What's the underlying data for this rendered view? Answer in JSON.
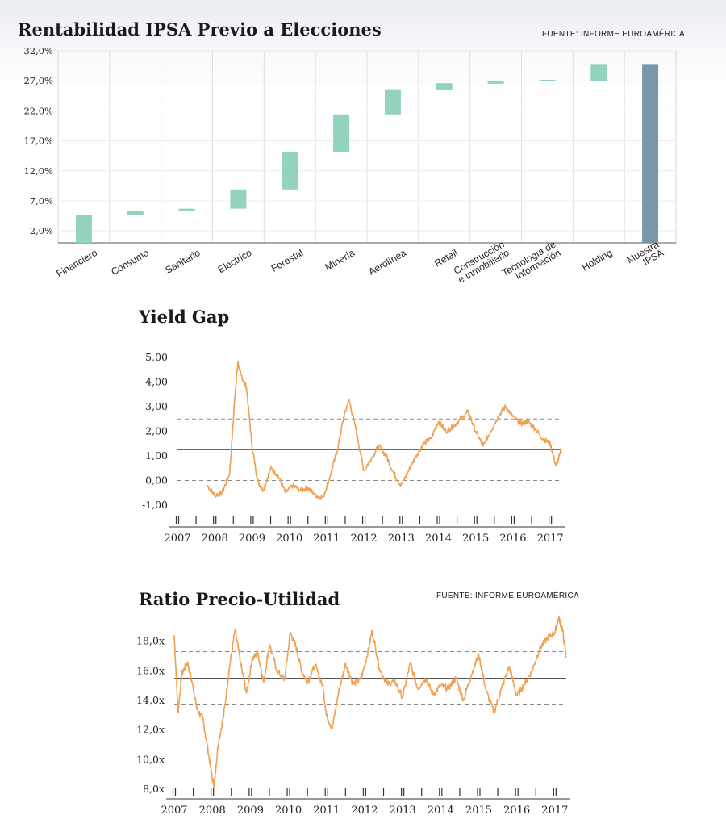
{
  "chart_data": [
    {
      "type": "bar",
      "subtype": "floating-waterfall",
      "title": "Rentabilidad IPSA Previo a Elecciones",
      "source": "FUENTE: INFORME EUROAMÉRICA",
      "ylim": [
        0,
        32
      ],
      "yticks": [
        "2,0%",
        "7,0%",
        "12,0%",
        "17,0%",
        "22,0%",
        "27,0%",
        "32,0%"
      ],
      "ytick_values": [
        2,
        7,
        12,
        17,
        22,
        27,
        32
      ],
      "grid": true,
      "colors": {
        "bars": "#93d3bd",
        "total": "#7a97a8"
      },
      "categories": [
        "Financiero",
        "Consumo",
        "Sanitario",
        "Eléctrico",
        "Forestal",
        "Minería",
        "Aerolínea",
        "Retail",
        "Construcción e inmobiliario",
        "Tecnología de información",
        "Holding",
        "Muestra IPSA"
      ],
      "category_lines": [
        [
          "Financiero"
        ],
        [
          "Consumo"
        ],
        [
          "Sanitario"
        ],
        [
          "Eléctrico"
        ],
        [
          "Forestal"
        ],
        [
          "Minería"
        ],
        [
          "Aerolínea"
        ],
        [
          "Retail"
        ],
        [
          "Construcción",
          "e inmobiliario"
        ],
        [
          "Tecnología de",
          "información"
        ],
        [
          "Holding"
        ],
        [
          "Muestra",
          "IPSA"
        ]
      ],
      "low": [
        0,
        4.6,
        5.3,
        5.7,
        8.9,
        15.2,
        21.4,
        25.5,
        26.5,
        26.9,
        26.9,
        0
      ],
      "high": [
        4.6,
        5.3,
        5.7,
        8.9,
        15.2,
        21.4,
        25.6,
        26.6,
        26.9,
        27.0,
        29.8,
        29.8
      ]
    },
    {
      "type": "line",
      "title": "Yield Gap",
      "ylim": [
        -1,
        5
      ],
      "yticks": [
        "-1,00",
        "0,00",
        "1,00",
        "2,00",
        "3,00",
        "4,00",
        "5,00"
      ],
      "ytick_values": [
        -1,
        0,
        1,
        2,
        3,
        4,
        5
      ],
      "x_years": [
        "2007",
        "2008",
        "2009",
        "2010",
        "2011",
        "2012",
        "2013",
        "2014",
        "2015",
        "2016",
        "2017"
      ],
      "x_range": [
        2007.0,
        2017.3
      ],
      "reference_lines": {
        "mean": 1.25,
        "upper": 2.5,
        "lower": 0.0
      },
      "color": "#f0a050",
      "series": [
        {
          "x": [
            2007.8,
            2008.0,
            2008.2,
            2008.4,
            2008.55,
            2008.62,
            2008.7,
            2008.85,
            2009.0,
            2009.15,
            2009.3,
            2009.5,
            2009.7,
            2009.9,
            2010.1,
            2010.3,
            2010.5,
            2010.7,
            2010.9,
            2011.1,
            2011.3,
            2011.45,
            2011.6,
            2011.8,
            2012.0,
            2012.2,
            2012.4,
            2012.6,
            2012.8,
            2013.0,
            2013.2,
            2013.4,
            2013.6,
            2013.8,
            2014.0,
            2014.2,
            2014.4,
            2014.6,
            2014.8,
            2015.0,
            2015.2,
            2015.4,
            2015.6,
            2015.8,
            2016.0,
            2016.2,
            2016.4,
            2016.6,
            2016.8,
            2017.0,
            2017.15,
            2017.3
          ],
          "values": [
            -0.2,
            -0.6,
            -0.5,
            0.3,
            3.6,
            4.8,
            4.3,
            3.8,
            1.4,
            0.0,
            -0.4,
            0.5,
            0.2,
            -0.5,
            -0.2,
            -0.4,
            -0.3,
            -0.6,
            -0.7,
            0.2,
            1.3,
            2.5,
            3.3,
            2.0,
            0.4,
            0.9,
            1.4,
            1.0,
            0.3,
            -0.2,
            0.4,
            1.0,
            1.5,
            1.7,
            2.4,
            2.0,
            2.2,
            2.5,
            2.8,
            2.0,
            1.4,
            2.0,
            2.6,
            3.0,
            2.6,
            2.3,
            2.4,
            2.1,
            1.7,
            1.5,
            0.6,
            1.2
          ]
        }
      ]
    },
    {
      "type": "line",
      "title": "Ratio Precio-Utilidad",
      "source": "FUENTE: INFORME EUROAMÉRICA",
      "ylim": [
        8,
        20
      ],
      "yticks": [
        "8,0x",
        "10,0x",
        "12,0x",
        "14,0x",
        "16,0x",
        "18,0x"
      ],
      "ytick_values": [
        8,
        10,
        12,
        14,
        16,
        18
      ],
      "x_years": [
        "2007",
        "2008",
        "2009",
        "2010",
        "2011",
        "2012",
        "2013",
        "2014",
        "2015",
        "2016",
        "2017"
      ],
      "x_range": [
        2007.0,
        2017.3
      ],
      "reference_lines": {
        "mean": 15.5,
        "upper": 17.3,
        "lower": 13.7
      },
      "color": "#f0a050",
      "series": [
        {
          "x": [
            2007.0,
            2007.1,
            2007.2,
            2007.35,
            2007.5,
            2007.6,
            2007.75,
            2007.9,
            2008.0,
            2008.05,
            2008.15,
            2008.3,
            2008.45,
            2008.6,
            2008.75,
            2008.9,
            2009.05,
            2009.2,
            2009.35,
            2009.5,
            2009.7,
            2009.9,
            2010.05,
            2010.2,
            2010.35,
            2010.5,
            2010.7,
            2010.9,
            2011.0,
            2011.15,
            2011.3,
            2011.5,
            2011.7,
            2011.9,
            2012.05,
            2012.2,
            2012.4,
            2012.6,
            2012.8,
            2013.0,
            2013.2,
            2013.4,
            2013.6,
            2013.8,
            2014.0,
            2014.2,
            2014.4,
            2014.6,
            2014.8,
            2015.0,
            2015.2,
            2015.4,
            2015.6,
            2015.8,
            2016.0,
            2016.2,
            2016.4,
            2016.6,
            2016.8,
            2017.0,
            2017.1,
            2017.2,
            2017.3
          ],
          "values": [
            18.4,
            13.2,
            15.8,
            16.6,
            14.8,
            13.4,
            12.8,
            10.4,
            8.7,
            8.3,
            11.0,
            13.0,
            16.2,
            18.8,
            16.4,
            14.5,
            16.8,
            17.2,
            15.2,
            17.8,
            16.0,
            15.4,
            18.6,
            17.6,
            16.0,
            15.2,
            16.4,
            15.0,
            13.0,
            12.1,
            14.3,
            16.5,
            15.1,
            15.4,
            16.8,
            18.7,
            16.1,
            15.1,
            15.3,
            14.2,
            16.5,
            14.8,
            15.5,
            14.4,
            15.0,
            14.8,
            15.5,
            14.0,
            15.7,
            17.1,
            14.6,
            13.2,
            14.8,
            16.3,
            14.3,
            15.1,
            16.0,
            17.5,
            18.2,
            18.6,
            19.6,
            18.8,
            16.9
          ]
        }
      ]
    }
  ]
}
